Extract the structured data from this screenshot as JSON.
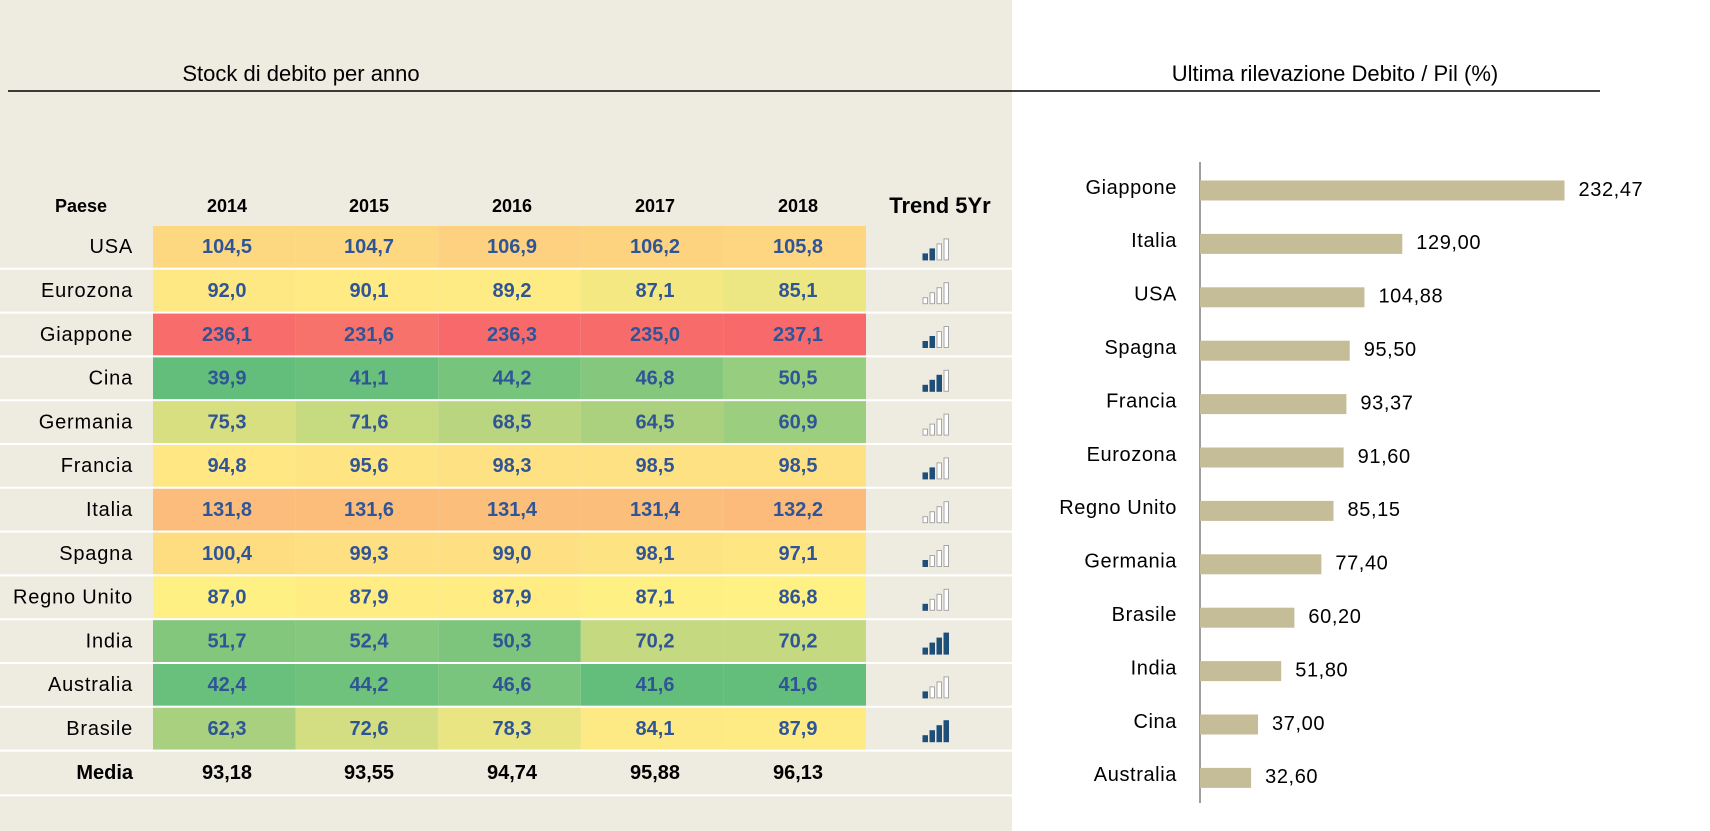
{
  "table": {
    "title": "Stock di debito per anno",
    "headers": [
      "Paese",
      "2014",
      "2015",
      "2016",
      "2017",
      "2018",
      "Trend 5Yr"
    ],
    "rows": [
      [
        "USA",
        "104,5",
        "104,7",
        "106,9",
        "106,2",
        "105,8"
      ],
      [
        "Eurozona",
        "92,0",
        "90,1",
        "89,2",
        "87,1",
        "85,1"
      ],
      [
        "Giappone",
        "236,1",
        "231,6",
        "236,3",
        "235,0",
        "237,1"
      ],
      [
        "Cina",
        "39,9",
        "41,1",
        "44,2",
        "46,8",
        "50,5"
      ],
      [
        "Germania",
        "75,3",
        "71,6",
        "68,5",
        "64,5",
        "60,9"
      ],
      [
        "Francia",
        "94,8",
        "95,6",
        "98,3",
        "98,5",
        "98,5"
      ],
      [
        "Italia",
        "131,8",
        "131,6",
        "131,4",
        "131,4",
        "132,2"
      ],
      [
        "Spagna",
        "100,4",
        "99,3",
        "99,0",
        "98,1",
        "97,1"
      ],
      [
        "Regno Unito",
        "87,0",
        "87,9",
        "87,9",
        "87,1",
        "86,8"
      ],
      [
        "India",
        "51,7",
        "52,4",
        "50,3",
        "70,2",
        "70,2"
      ],
      [
        "Australia",
        "42,4",
        "44,2",
        "46,6",
        "41,6",
        "41,6"
      ],
      [
        "Brasile",
        "62,3",
        "72,6",
        "78,3",
        "84,1",
        "87,9"
      ]
    ],
    "colors": [
      [
        "#fed880",
        "#fed880",
        "#fdd17f",
        "#fdd37f",
        "#fed580"
      ],
      [
        "#fee883",
        "#ffea84",
        "#feeb84",
        "#f4e883",
        "#ece683"
      ],
      [
        "#f86c6b",
        "#f8726c",
        "#f8696b",
        "#f86b6b",
        "#f8696b"
      ],
      [
        "#63be7b",
        "#69c07c",
        "#77c47d",
        "#85c87d",
        "#96cd7e"
      ],
      [
        "#d7df81",
        "#c6da80",
        "#b9d580",
        "#abd17f",
        "#9bce7f"
      ],
      [
        "#ffe884",
        "#ffe483",
        "#fee182",
        "#fee182",
        "#fee182"
      ],
      [
        "#fcbc7b",
        "#fcbd7b",
        "#fcbe7b",
        "#fcbe7b",
        "#fcbb7a"
      ],
      [
        "#fedd81",
        "#fee082",
        "#fee082",
        "#fee383",
        "#fee683"
      ],
      [
        "#fff083",
        "#ffed84",
        "#ffed84",
        "#fff083",
        "#fff183"
      ],
      [
        "#83c77d",
        "#86c87d",
        "#7dc57d",
        "#c5da80",
        "#c5da80"
      ],
      [
        "#69c07c",
        "#6fc27c",
        "#79c57d",
        "#63be7b",
        "#63be7b"
      ],
      [
        "#a8d07f",
        "#d2de81",
        "#e9e583",
        "#fdea84",
        "#ffeb84"
      ]
    ],
    "trend_levels": [
      2,
      0,
      2,
      3,
      0,
      2,
      0,
      1,
      1,
      4,
      1,
      4
    ],
    "footer": [
      "Media",
      "93,18",
      "93,55",
      "94,74",
      "95,88",
      "96,13"
    ]
  },
  "chart_data": {
    "type": "bar",
    "orientation": "horizontal",
    "title": "Ultima rilevazione Debito / Pil (%)",
    "categories": [
      "Giappone",
      "Italia",
      "USA",
      "Spagna",
      "Francia",
      "Eurozona",
      "Regno Unito",
      "Germania",
      "Brasile",
      "India",
      "Cina",
      "Australia"
    ],
    "values": [
      232.47,
      129.0,
      104.88,
      95.5,
      93.37,
      91.6,
      85.15,
      77.4,
      60.2,
      51.8,
      37.0,
      32.6
    ],
    "value_labels": [
      "232,47",
      "129,00",
      "104,88",
      "95,50",
      "93,37",
      "91,60",
      "85,15",
      "77,40",
      "60,20",
      "51,80",
      "37,00",
      "32,60"
    ],
    "color": "#c4bd97",
    "xlim": [
      0,
      250
    ]
  }
}
